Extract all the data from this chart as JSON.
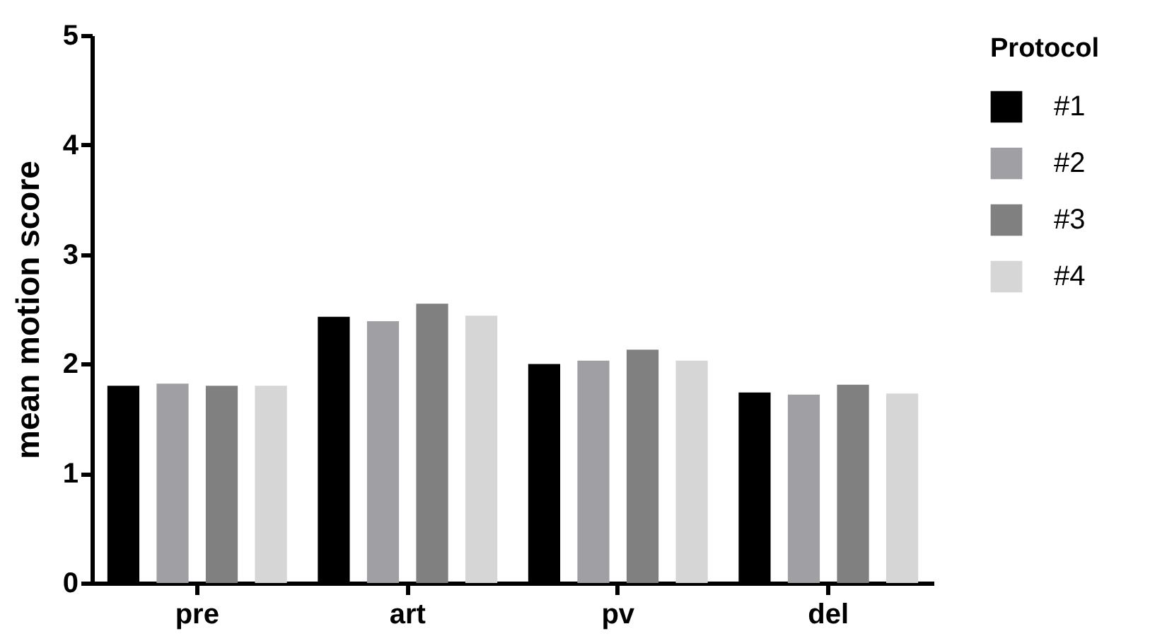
{
  "chart_data": {
    "type": "bar",
    "ylabel": "mean motion  score",
    "legend_title": "Protocol",
    "legend": "right",
    "grid": false,
    "categories": [
      "pre",
      "art",
      "pv",
      "del"
    ],
    "ylim": [
      0,
      5
    ],
    "yticks": [
      0,
      1,
      2,
      3,
      4,
      5
    ],
    "series": [
      {
        "name": "#1",
        "color": "#000000",
        "values": [
          1.8,
          2.43,
          2.0,
          1.74
        ]
      },
      {
        "name": "#2",
        "color": "#a0a0a4",
        "values": [
          1.82,
          2.39,
          2.03,
          1.72
        ]
      },
      {
        "name": "#3",
        "color": "#808080",
        "values": [
          1.8,
          2.55,
          2.13,
          1.81
        ]
      },
      {
        "name": "#4",
        "color": "#d6d6d6",
        "values": [
          1.8,
          2.44,
          2.03,
          1.73
        ]
      }
    ]
  }
}
